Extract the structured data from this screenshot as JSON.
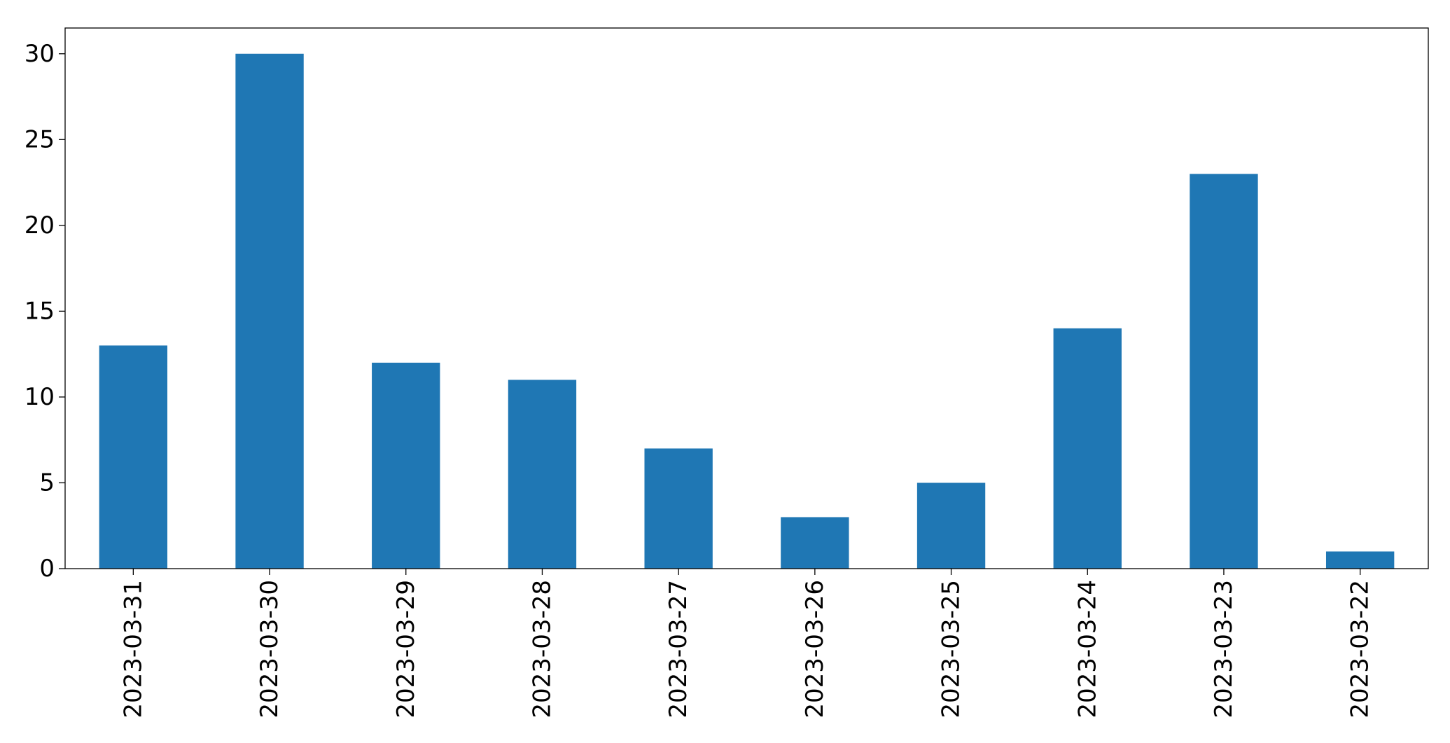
{
  "chart_data": {
    "type": "bar",
    "title": "",
    "xlabel": "",
    "ylabel": "",
    "categories": [
      "2023-03-31",
      "2023-03-30",
      "2023-03-29",
      "2023-03-28",
      "2023-03-27",
      "2023-03-26",
      "2023-03-25",
      "2023-03-24",
      "2023-03-23",
      "2023-03-22"
    ],
    "values": [
      13,
      30,
      12,
      11,
      7,
      3,
      5,
      14,
      23,
      1
    ],
    "ylim": [
      0,
      31.5
    ],
    "yticks": [
      0,
      5,
      10,
      15,
      20,
      25,
      30
    ],
    "grid": false,
    "legend": "none",
    "bar_color": "#1f77b4"
  }
}
